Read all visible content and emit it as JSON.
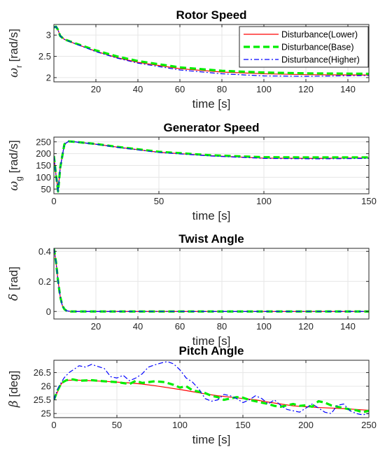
{
  "figure": {
    "legend_entries": [
      "Disturbance(Lower)",
      "Disturbance(Base)",
      "Disturbance(Higher)"
    ],
    "legend_placement": "top-right of first panel",
    "colors": {
      "lower": "#ff0000",
      "base": "#00ee00",
      "higher": "#0000ff",
      "grid": "#e6e6e6",
      "axis": "#262626"
    }
  },
  "chart_data": [
    {
      "type": "line",
      "title": "Rotor Speed",
      "xlabel": "time [s]",
      "ylabel": "ω_r [rad/s]",
      "ylabel_main": "ω",
      "ylabel_sub": "r",
      "ylabel_rest": " [rad/s]",
      "xlim": [
        0,
        150
      ],
      "ylim": [
        1.9,
        3.25
      ],
      "xticks": [
        20,
        40,
        60,
        80,
        100,
        120,
        140
      ],
      "yticks": [
        2,
        2.5,
        3
      ],
      "xtick_labels": [
        "20",
        "40",
        "60",
        "80",
        "100",
        "120",
        "140"
      ],
      "ytick_labels": [
        "2",
        "2.5",
        "3"
      ],
      "grid": true,
      "legend": true,
      "series": [
        {
          "name": "Disturbance(Lower)",
          "x": [
            0,
            1,
            2,
            3,
            5,
            10,
            20,
            30,
            40,
            60,
            80,
            100,
            120,
            150
          ],
          "y": [
            3.18,
            3.2,
            3.12,
            2.98,
            2.9,
            2.8,
            2.62,
            2.47,
            2.36,
            2.21,
            2.13,
            2.09,
            2.07,
            2.06
          ]
        },
        {
          "name": "Disturbance(Base)",
          "x": [
            0,
            1,
            2,
            3,
            5,
            10,
            20,
            30,
            40,
            60,
            80,
            100,
            120,
            150
          ],
          "y": [
            3.18,
            3.2,
            3.12,
            2.98,
            2.9,
            2.81,
            2.64,
            2.5,
            2.39,
            2.24,
            2.16,
            2.12,
            2.1,
            2.09
          ]
        },
        {
          "name": "Disturbance(Higher)",
          "x": [
            0,
            1,
            2,
            3,
            5,
            10,
            20,
            30,
            40,
            60,
            80,
            100,
            120,
            150
          ],
          "y": [
            3.18,
            3.2,
            3.12,
            2.98,
            2.9,
            2.8,
            2.61,
            2.46,
            2.34,
            2.18,
            2.09,
            2.04,
            2.03,
            2.05
          ]
        }
      ]
    },
    {
      "type": "line",
      "title": "Generator Speed",
      "xlabel": "time [s]",
      "ylabel": "ω_g [rad/s]",
      "ylabel_main": "ω",
      "ylabel_sub": "g",
      "ylabel_rest": " [rad/s]",
      "xlim": [
        0,
        150
      ],
      "ylim": [
        30,
        270
      ],
      "xticks": [
        0,
        50,
        100,
        150
      ],
      "yticks": [
        50,
        100,
        150,
        200,
        250
      ],
      "xtick_labels": [
        "0",
        "50",
        "100",
        "150"
      ],
      "ytick_labels": [
        "50",
        "100",
        "150",
        "200",
        "250"
      ],
      "grid": true,
      "legend": false,
      "series": [
        {
          "name": "Disturbance(Lower)",
          "x": [
            0,
            1,
            2,
            3,
            5,
            7,
            10,
            20,
            30,
            50,
            75,
            100,
            125,
            150
          ],
          "y": [
            190,
            110,
            40,
            140,
            240,
            252,
            250,
            240,
            228,
            206,
            191,
            181,
            180,
            182
          ]
        },
        {
          "name": "Disturbance(Base)",
          "x": [
            0,
            1,
            2,
            3,
            5,
            7,
            10,
            20,
            30,
            50,
            75,
            100,
            125,
            150
          ],
          "y": [
            190,
            110,
            40,
            140,
            240,
            252,
            250,
            241,
            229,
            208,
            193,
            185,
            184,
            184
          ]
        },
        {
          "name": "Disturbance(Higher)",
          "x": [
            0,
            1,
            2,
            3,
            5,
            7,
            10,
            20,
            30,
            50,
            75,
            100,
            125,
            150
          ],
          "y": [
            190,
            110,
            40,
            140,
            240,
            252,
            250,
            240,
            227,
            205,
            190,
            180,
            178,
            180
          ]
        }
      ]
    },
    {
      "type": "line",
      "title": "Twist Angle",
      "xlabel": "time [s]",
      "ylabel": "δ [rad]",
      "ylabel_main": "δ",
      "ylabel_sub": "",
      "ylabel_rest": " [rad]",
      "xlim": [
        0,
        150
      ],
      "ylim": [
        -0.05,
        0.42
      ],
      "xticks": [
        20,
        40,
        60,
        80,
        100,
        120,
        140
      ],
      "yticks": [
        0,
        0.2,
        0.4
      ],
      "xtick_labels": [
        "20",
        "40",
        "60",
        "80",
        "100",
        "120",
        "140"
      ],
      "ytick_labels": [
        "0",
        "0.2",
        "0.4"
      ],
      "grid": true,
      "legend": false,
      "series": [
        {
          "name": "Disturbance(Lower)",
          "x": [
            0,
            1,
            2,
            3,
            4,
            5,
            6,
            8,
            150
          ],
          "y": [
            0.42,
            0.33,
            0.2,
            0.1,
            0.04,
            0.015,
            0.005,
            0.0,
            0.0
          ]
        },
        {
          "name": "Disturbance(Base)",
          "x": [
            0,
            1,
            2,
            3,
            4,
            5,
            6,
            8,
            150
          ],
          "y": [
            0.42,
            0.33,
            0.2,
            0.1,
            0.04,
            0.015,
            0.005,
            0.0,
            0.0
          ]
        },
        {
          "name": "Disturbance(Higher)",
          "x": [
            0,
            1,
            2,
            3,
            4,
            5,
            6,
            8,
            150
          ],
          "y": [
            0.42,
            0.33,
            0.2,
            0.1,
            0.04,
            0.015,
            0.005,
            0.0,
            0.0
          ]
        }
      ]
    },
    {
      "type": "line",
      "title": "Pitch Angle",
      "xlabel": "time [s]",
      "ylabel": "β [deg]",
      "ylabel_main": "β",
      "ylabel_sub": "",
      "ylabel_rest": " [deg]",
      "xlim": [
        0,
        250
      ],
      "ylim": [
        24.85,
        26.95
      ],
      "xticks": [
        0,
        50,
        100,
        150,
        200,
        250
      ],
      "yticks": [
        25,
        25.5,
        26,
        26.5
      ],
      "xtick_labels": [
        "0",
        "50",
        "100",
        "150",
        "200",
        "250"
      ],
      "ytick_labels": [
        "25",
        "25.5",
        "26",
        "26.5"
      ],
      "grid": true,
      "legend": false,
      "series": [
        {
          "name": "Disturbance(Lower)",
          "x": [
            0,
            3,
            6,
            10,
            20,
            30,
            40,
            50,
            60,
            70,
            80,
            90,
            100,
            110,
            120,
            130,
            140,
            150,
            160,
            170,
            180,
            190,
            200,
            210,
            220,
            230,
            240,
            250
          ],
          "y": [
            25.5,
            25.8,
            26.1,
            26.22,
            26.22,
            26.2,
            26.18,
            26.15,
            26.12,
            26.08,
            26.02,
            25.95,
            25.88,
            25.8,
            25.72,
            25.65,
            25.6,
            25.55,
            25.5,
            25.42,
            25.35,
            25.28,
            25.25,
            25.22,
            25.2,
            25.18,
            25.15,
            25.12
          ]
        },
        {
          "name": "Disturbance(Base)",
          "x": [
            0,
            3,
            6,
            10,
            15,
            20,
            30,
            40,
            50,
            60,
            65,
            70,
            80,
            88,
            95,
            100,
            105,
            110,
            115,
            120,
            125,
            130,
            135,
            140,
            145,
            150,
            155,
            160,
            165,
            170,
            175,
            180,
            185,
            190,
            195,
            200,
            205,
            210,
            215,
            220,
            225,
            230,
            235,
            240,
            245,
            250
          ],
          "y": [
            25.5,
            25.85,
            26.12,
            26.22,
            26.25,
            26.2,
            26.22,
            26.18,
            26.15,
            26.08,
            26.2,
            26.12,
            26.18,
            26.15,
            26.05,
            25.95,
            26.0,
            25.85,
            25.8,
            25.75,
            25.65,
            25.6,
            25.5,
            25.55,
            25.6,
            25.58,
            25.5,
            25.45,
            25.4,
            25.35,
            25.28,
            25.25,
            25.3,
            25.35,
            25.28,
            25.3,
            25.25,
            25.45,
            25.4,
            25.3,
            25.25,
            25.2,
            25.15,
            25.12,
            25.05,
            25.1
          ]
        },
        {
          "name": "Disturbance(Higher)",
          "x": [
            0,
            3,
            6,
            8,
            12,
            16,
            20,
            25,
            30,
            35,
            40,
            45,
            50,
            55,
            60,
            65,
            70,
            75,
            80,
            85,
            90,
            95,
            100,
            105,
            110,
            115,
            120,
            125,
            130,
            135,
            140,
            145,
            150,
            155,
            160,
            165,
            170,
            175,
            180,
            185,
            190,
            195,
            200,
            205,
            210,
            215,
            220,
            225,
            230,
            235,
            240,
            245,
            250
          ],
          "y": [
            25.5,
            25.9,
            26.15,
            26.3,
            26.5,
            26.62,
            26.75,
            26.7,
            26.8,
            26.72,
            26.65,
            26.35,
            26.3,
            26.4,
            26.2,
            26.3,
            26.45,
            26.7,
            26.78,
            26.85,
            26.9,
            26.82,
            26.6,
            26.3,
            26.15,
            25.9,
            25.55,
            25.45,
            25.5,
            25.7,
            25.65,
            25.55,
            25.4,
            25.5,
            25.65,
            25.55,
            25.35,
            25.5,
            25.3,
            25.15,
            25.1,
            25.05,
            25.2,
            25.35,
            25.2,
            25.05,
            25.0,
            25.3,
            25.35,
            25.1,
            25.0,
            24.95,
            25.0
          ]
        }
      ]
    }
  ]
}
